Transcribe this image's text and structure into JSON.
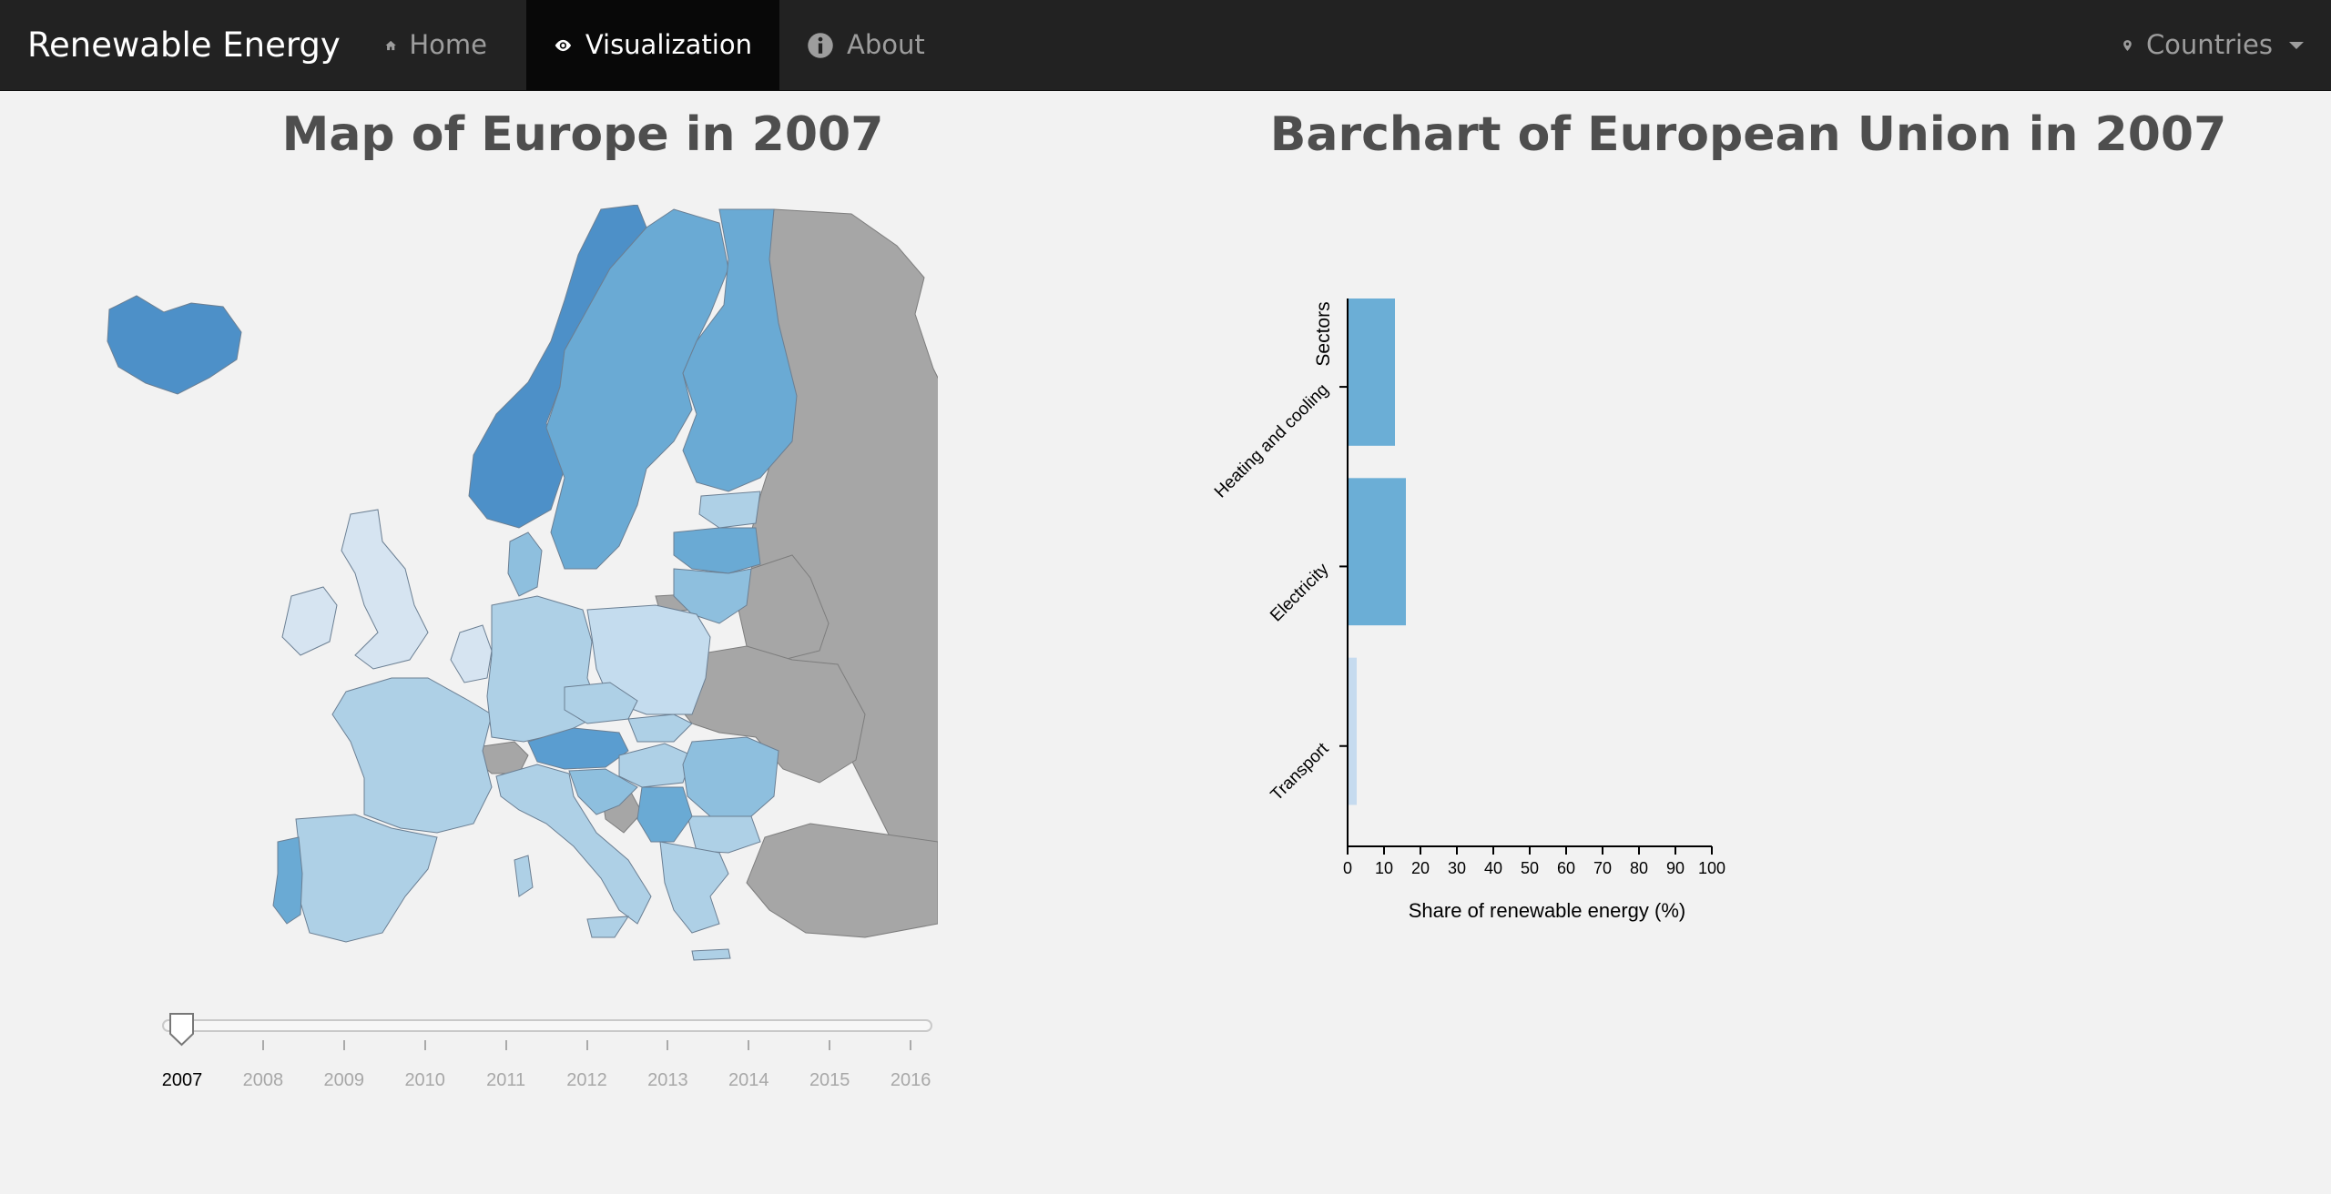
{
  "navbar": {
    "brand": "Renewable Energy",
    "items": [
      {
        "label": "Home",
        "icon": "home-icon"
      },
      {
        "label": "Visualization",
        "icon": "eye-icon",
        "active": true
      },
      {
        "label": "About",
        "icon": "info-circle-icon"
      }
    ],
    "dropdown": {
      "label": "Countries",
      "icon": "map-marker-icon"
    }
  },
  "map": {
    "title": "Map of Europe in 2007",
    "selected_year": "2007",
    "years": [
      "2007",
      "2008",
      "2009",
      "2010",
      "2011",
      "2012",
      "2013",
      "2014",
      "2015",
      "2016"
    ],
    "colors": {
      "no_data": "#a6a6a6",
      "low": "#d6e4f1",
      "mid": "#aed0e6",
      "high": "#6aaad4",
      "top": "#4d90c8"
    }
  },
  "barchart": {
    "title": "Barchart of European Union in 2007"
  },
  "chart_data": {
    "type": "bar",
    "orientation": "horizontal",
    "categories": [
      "Heating and cooling",
      "Electricity",
      "Transport"
    ],
    "values": [
      13,
      16,
      2.5
    ],
    "colors": [
      "#6baed6",
      "#6baed6",
      "#c6dbef"
    ],
    "xlabel": "Share of renewable energy (%)",
    "ylabel": "Sectors",
    "xlim": [
      0,
      100
    ],
    "xticks": [
      "0",
      "10",
      "20",
      "30",
      "40",
      "50",
      "60",
      "70",
      "80",
      "90",
      "100"
    ]
  }
}
